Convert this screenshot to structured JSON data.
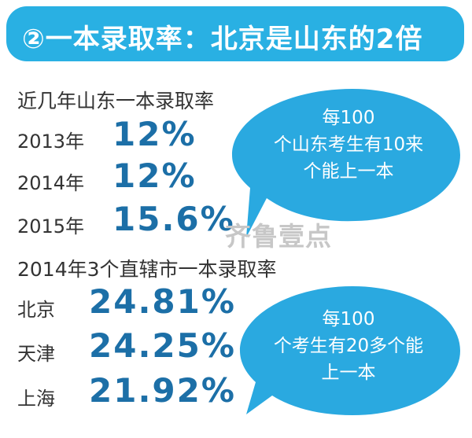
{
  "header": {
    "title": "②一本录取率：北京是山东的2倍"
  },
  "section_shandong": {
    "title": "近几年山东一本录取率"
  },
  "section_cities": {
    "title": "2014年3个直辖市一本录取率"
  },
  "bubbles": {
    "shandong": {
      "lines": [
        "每100",
        "个山东考生有10来",
        "个能上一本"
      ]
    },
    "cities": {
      "lines": [
        "每100",
        "个考生有20多个能",
        "上一本"
      ]
    }
  },
  "watermark": "齐鲁壹点",
  "colors": {
    "banner": "#29b0e3",
    "bubble": "#2aa9e0",
    "value": "#1c6fa7",
    "label": "#333333"
  },
  "chart_data": [
    {
      "type": "table",
      "title": "近几年山东一本录取率",
      "categories": [
        "2013年",
        "2014年",
        "2015年"
      ],
      "values": [
        12,
        12,
        15.6
      ],
      "display_values": [
        "12%",
        "12%",
        "15.6%"
      ]
    },
    {
      "type": "table",
      "title": "2014年3个直辖市一本录取率",
      "categories": [
        "北京",
        "天津",
        "上海"
      ],
      "values": [
        24.81,
        24.25,
        21.92
      ],
      "display_values": [
        "24.81%",
        "24.25%",
        "21.92%"
      ]
    }
  ]
}
